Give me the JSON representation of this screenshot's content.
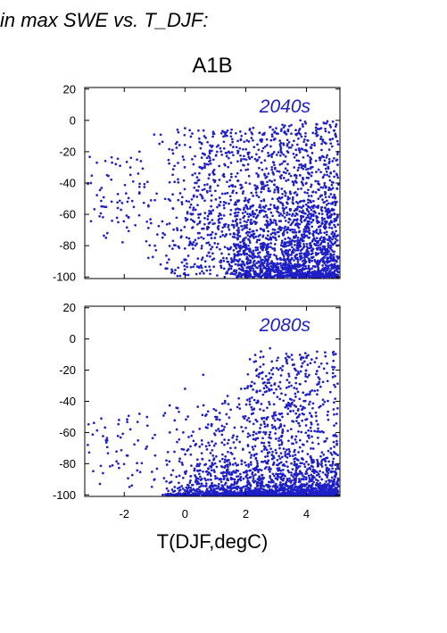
{
  "caption": "in max SWE vs. T_DJF:",
  "scenario_title": "A1B",
  "colors": {
    "points": "#1f1fc6",
    "period_label": "#1f1fc6",
    "axes": "#000000"
  },
  "chart_data": [
    {
      "type": "scatter",
      "panel_label": "2040s",
      "xlabel": "",
      "ylabel": "",
      "xlim": [
        -3.3,
        5.1
      ],
      "ylim": [
        -101,
        21
      ],
      "yticks": [
        20,
        0,
        -20,
        -40,
        -60,
        -80,
        -100
      ],
      "xticks": [
        -2,
        0,
        2,
        4
      ],
      "x_tick_labels_shown": false,
      "point_count_approx": 2500,
      "distribution_note": "Dense cloud; x mostly between 0 and 5, y mostly between -100 and -20. Density increases toward warmer T and more negative values. Sparse points at T < -1 between about -25 and -75. Top of cloud near 0 at T about 3.8.",
      "sample_points": [
        {
          "x": -3.1,
          "y": -40
        },
        {
          "x": -2.9,
          "y": -27
        },
        {
          "x": -2.7,
          "y": -55
        },
        {
          "x": -2.4,
          "y": -27
        },
        {
          "x": -2.2,
          "y": -65
        },
        {
          "x": -2.6,
          "y": -75
        },
        {
          "x": -1.8,
          "y": -30
        },
        {
          "x": -1.5,
          "y": -20
        },
        {
          "x": -1.2,
          "y": -55
        },
        {
          "x": -0.8,
          "y": -92
        },
        {
          "x": -0.3,
          "y": -15
        },
        {
          "x": 0.0,
          "y": -5
        },
        {
          "x": 0.5,
          "y": -30
        },
        {
          "x": 1.0,
          "y": -45
        },
        {
          "x": 1.5,
          "y": -60
        },
        {
          "x": 2.0,
          "y": -75
        },
        {
          "x": 2.5,
          "y": -90
        },
        {
          "x": 3.0,
          "y": -5
        },
        {
          "x": 3.5,
          "y": -3
        },
        {
          "x": 3.8,
          "y": 0
        },
        {
          "x": 4.0,
          "y": -98
        },
        {
          "x": 4.5,
          "y": -15
        },
        {
          "x": 4.9,
          "y": -100
        }
      ]
    },
    {
      "type": "scatter",
      "panel_label": "2080s",
      "xlabel": "T(DJF,degC)",
      "ylabel": "",
      "xlim": [
        -3.3,
        5.1
      ],
      "ylim": [
        -101,
        21
      ],
      "yticks": [
        20,
        0,
        -20,
        -40,
        -60,
        -80,
        -100
      ],
      "xticks": [
        -2,
        0,
        2,
        4
      ],
      "x_tick_labels": [
        "-2",
        "0",
        "2",
        "4"
      ],
      "point_count_approx": 2800,
      "distribution_note": "Very dense band near -100 across 0 to 5; scattered points rising to about -10 between T 2 and 4. Sparse points at T < -1 between about -50 and -95.",
      "sample_points": [
        {
          "x": -3.2,
          "y": -68
        },
        {
          "x": -2.8,
          "y": -93
        },
        {
          "x": -2.6,
          "y": -65
        },
        {
          "x": -2.2,
          "y": -80
        },
        {
          "x": -1.8,
          "y": -58
        },
        {
          "x": -1.5,
          "y": -48
        },
        {
          "x": -1.0,
          "y": -90
        },
        {
          "x": -0.5,
          "y": -60
        },
        {
          "x": 0.0,
          "y": -32
        },
        {
          "x": 0.6,
          "y": -23
        },
        {
          "x": 1.0,
          "y": -50
        },
        {
          "x": 1.5,
          "y": -70
        },
        {
          "x": 2.0,
          "y": -85
        },
        {
          "x": 2.5,
          "y": -8
        },
        {
          "x": 2.8,
          "y": -6
        },
        {
          "x": 3.2,
          "y": -20
        },
        {
          "x": 3.5,
          "y": -30
        },
        {
          "x": 3.9,
          "y": -12
        },
        {
          "x": 4.5,
          "y": -90
        },
        {
          "x": 4.9,
          "y": -100
        }
      ]
    }
  ]
}
